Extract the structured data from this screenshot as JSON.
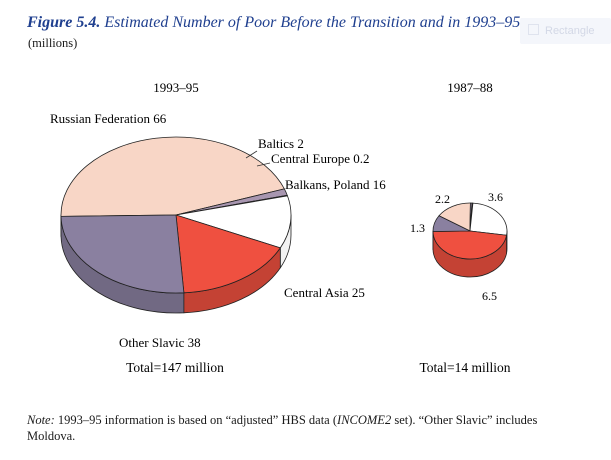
{
  "figure": {
    "label": "Figure 5.4.",
    "title": "Estimated Number of Poor Before the Transition and in 1993–95",
    "units": "(millions)"
  },
  "toolbar": {
    "ghost_label": "Rectangle"
  },
  "colors": {
    "Russian Federation": "#f8d6c6",
    "Baltics": "#a896b0",
    "Central Europe": "#c8c8c8",
    "Balkans, Poland": "#ffffff",
    "Central Asia": "#ef5040",
    "Other Slavic": "#8a80a0"
  },
  "chart_data": [
    {
      "type": "pie",
      "title": "1993–95",
      "labels": [
        "Russian Federation",
        "Baltics",
        "Central Europe",
        "Balkans, Poland",
        "Central Asia",
        "Other Slavic"
      ],
      "values": [
        66,
        2,
        0.2,
        16,
        25,
        38
      ],
      "slice_labels": [
        "Russian Federation 66",
        "Baltics 2",
        "Central Europe 0.2",
        "Balkans, Poland 16",
        "Central Asia 25",
        "Other Slavic 38"
      ],
      "total_label": "Total=147 million"
    },
    {
      "type": "pie",
      "title": "1987–88",
      "labels": [
        "Russian Federation",
        "Baltics",
        "Central Europe",
        "Balkans, Poland",
        "Central Asia",
        "Other Slavic"
      ],
      "values": [
        2.2,
        0.1,
        0.05,
        3.6,
        6.5,
        1.3
      ],
      "slice_labels": [
        "2.2",
        "",
        "",
        "3.6",
        "6.5",
        "1.3"
      ],
      "total_label": "Total=14 million"
    }
  ],
  "note": {
    "prefix": "Note:",
    "text_1": " 1993–95 information is based on “adjusted” HBS data (",
    "emph": "INCOME2",
    "text_2": " set). “Other Slavic” includes Moldova."
  }
}
